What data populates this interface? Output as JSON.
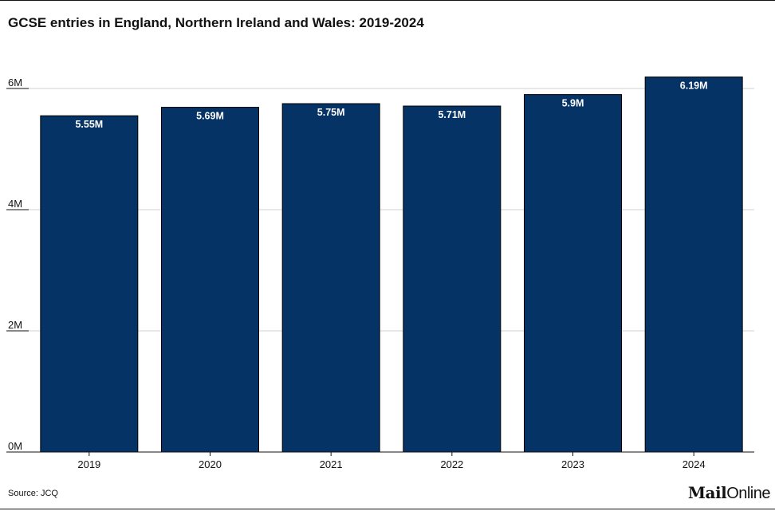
{
  "header": {
    "title": "GCSE entries in England, Northern Ireland and Wales: 2019-2024"
  },
  "footer": {
    "source": "Source: JCQ",
    "logo_mail": "Mail",
    "logo_online": "Online"
  },
  "colors": {
    "bar": "#063366",
    "grid": "#d0d0d0",
    "text": "#121212",
    "label": "#ffffff"
  },
  "chart_data": {
    "type": "bar",
    "title": "GCSE entries in England, Northern Ireland and Wales: 2019-2024",
    "xlabel": "",
    "ylabel": "",
    "categories": [
      "2019",
      "2020",
      "2021",
      "2022",
      "2023",
      "2024"
    ],
    "values": [
      5.55,
      5.69,
      5.75,
      5.71,
      5.9,
      6.19
    ],
    "data_labels": [
      "5.55M",
      "5.69M",
      "5.75M",
      "5.71M",
      "5.9M",
      "6.19M"
    ],
    "y_ticks": [
      0,
      2,
      4,
      6
    ],
    "y_tick_labels": [
      "0M",
      "2M",
      "4M",
      "6M"
    ],
    "ylim": [
      0,
      6
    ],
    "grid": true,
    "legend": "none"
  }
}
